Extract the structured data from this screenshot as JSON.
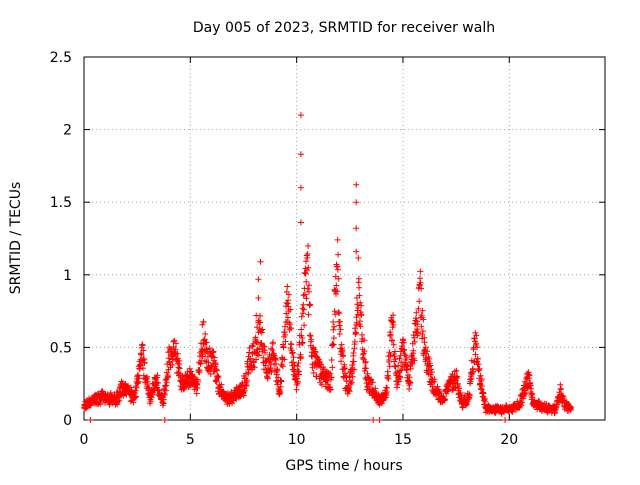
{
  "chart_data": {
    "type": "scatter",
    "title": "Day 005 of 2023, SRMTID for receiver walh",
    "xlabel": "GPS time / hours",
    "ylabel": "SRMTID / TECUs",
    "xlim": [
      0,
      24.5
    ],
    "ylim": [
      0,
      2.5
    ],
    "xticks": [
      0,
      5,
      10,
      15,
      20
    ],
    "xtick_labels": [
      "0",
      "5",
      "10",
      "15",
      "20"
    ],
    "yticks": [
      0,
      0.5,
      1,
      1.5,
      2,
      2.5
    ],
    "ytick_labels": [
      "0",
      "0.5",
      "1",
      "1.5",
      "2",
      "2.5"
    ],
    "grid": true,
    "marker": "+",
    "series": [
      {
        "name": "SRMTID",
        "color": "#ff0000",
        "profile_points": [
          [
            0.0,
            0.1
          ],
          [
            0.3,
            0.12
          ],
          [
            0.6,
            0.15
          ],
          [
            1.0,
            0.16
          ],
          [
            1.5,
            0.14
          ],
          [
            1.8,
            0.22
          ],
          [
            2.1,
            0.2
          ],
          [
            2.4,
            0.15
          ],
          [
            2.7,
            0.48
          ],
          [
            2.9,
            0.3
          ],
          [
            3.1,
            0.15
          ],
          [
            3.4,
            0.28
          ],
          [
            3.7,
            0.12
          ],
          [
            4.0,
            0.42
          ],
          [
            4.3,
            0.46
          ],
          [
            4.6,
            0.25
          ],
          [
            5.0,
            0.3
          ],
          [
            5.3,
            0.22
          ],
          [
            5.6,
            0.58
          ],
          [
            5.8,
            0.42
          ],
          [
            6.1,
            0.4
          ],
          [
            6.4,
            0.2
          ],
          [
            6.8,
            0.14
          ],
          [
            7.2,
            0.18
          ],
          [
            7.5,
            0.22
          ],
          [
            7.8,
            0.42
          ],
          [
            8.0,
            0.44
          ],
          [
            8.3,
            0.6
          ],
          [
            8.6,
            0.32
          ],
          [
            8.9,
            0.45
          ],
          [
            9.2,
            0.2
          ],
          [
            9.4,
            0.5
          ],
          [
            9.6,
            0.85
          ],
          [
            9.8,
            0.4
          ],
          [
            10.0,
            0.25
          ],
          [
            10.3,
            0.7
          ],
          [
            10.5,
            1.12
          ],
          [
            10.7,
            0.45
          ],
          [
            11.0,
            0.35
          ],
          [
            11.3,
            0.3
          ],
          [
            11.6,
            0.25
          ],
          [
            11.9,
            1.12
          ],
          [
            12.1,
            0.45
          ],
          [
            12.4,
            0.2
          ],
          [
            12.7,
            0.4
          ],
          [
            12.9,
            0.95
          ],
          [
            13.1,
            0.55
          ],
          [
            13.3,
            0.28
          ],
          [
            13.6,
            0.2
          ],
          [
            13.9,
            0.12
          ],
          [
            14.2,
            0.18
          ],
          [
            14.5,
            0.67
          ],
          [
            14.7,
            0.25
          ],
          [
            15.0,
            0.48
          ],
          [
            15.3,
            0.26
          ],
          [
            15.6,
            0.6
          ],
          [
            15.8,
            0.86
          ],
          [
            16.0,
            0.5
          ],
          [
            16.3,
            0.3
          ],
          [
            16.6,
            0.18
          ],
          [
            16.9,
            0.14
          ],
          [
            17.2,
            0.25
          ],
          [
            17.5,
            0.28
          ],
          [
            17.8,
            0.12
          ],
          [
            18.1,
            0.16
          ],
          [
            18.4,
            0.54
          ],
          [
            18.6,
            0.3
          ],
          [
            18.9,
            0.08
          ],
          [
            19.3,
            0.07
          ],
          [
            19.7,
            0.07
          ],
          [
            20.1,
            0.08
          ],
          [
            20.5,
            0.12
          ],
          [
            20.9,
            0.3
          ],
          [
            21.1,
            0.12
          ],
          [
            21.4,
            0.1
          ],
          [
            21.8,
            0.08
          ],
          [
            22.2,
            0.07
          ],
          [
            22.4,
            0.2
          ],
          [
            22.6,
            0.1
          ],
          [
            22.9,
            0.08
          ]
        ],
        "spikes": [
          [
            8.3,
            1.09
          ],
          [
            8.2,
            0.97
          ],
          [
            8.2,
            0.84
          ],
          [
            8.1,
            0.72
          ],
          [
            10.2,
            2.1
          ],
          [
            10.2,
            1.83
          ],
          [
            10.2,
            1.6
          ],
          [
            10.2,
            1.36
          ],
          [
            12.8,
            1.62
          ],
          [
            12.8,
            1.5
          ],
          [
            12.8,
            1.32
          ],
          [
            12.8,
            1.16
          ]
        ],
        "floor_points": [
          0.3,
          3.8,
          13.6,
          13.9,
          19.8
        ]
      }
    ]
  }
}
